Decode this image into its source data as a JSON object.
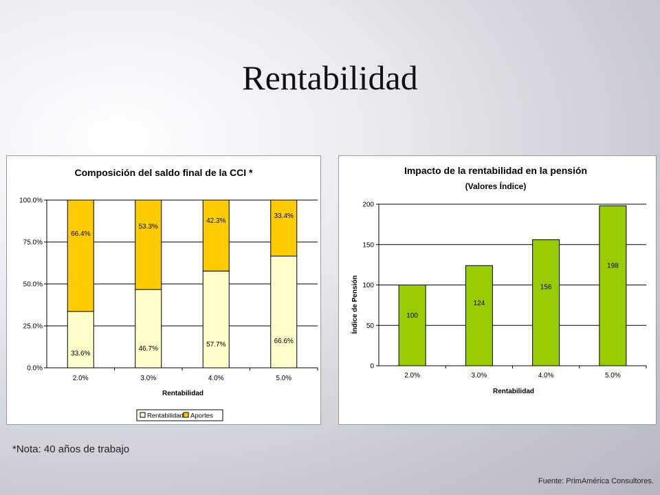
{
  "slide": {
    "title": "Rentabilidad",
    "note": "*Nota: 40 años de trabajo",
    "source": "Fuente: PrimAmérica Consultores."
  },
  "colors": {
    "rentabilidad_fill": "#ffffcc",
    "aportes_fill": "#ffcc00",
    "index_bar_fill": "#99cc00",
    "gridline": "#000000"
  },
  "chart_data": [
    {
      "type": "bar",
      "stacked": true,
      "title": "Composición del saldo final de la CCI *",
      "xlabel": "Rentabilidad",
      "ylabel": "",
      "categories": [
        "2.0%",
        "3.0%",
        "4.0%",
        "5.0%"
      ],
      "series": [
        {
          "name": "Rentabilidad",
          "values": [
            33.6,
            46.7,
            57.7,
            66.6
          ],
          "labels": [
            "33.6%",
            "46.7%",
            "57.7%",
            "66.6%"
          ],
          "color": "#ffffcc"
        },
        {
          "name": "Aportes",
          "values": [
            66.4,
            53.3,
            42.3,
            33.4
          ],
          "labels": [
            "66.4%",
            "53.3%",
            "42.3%",
            "33.4%"
          ],
          "color": "#ffcc00"
        }
      ],
      "ylim": [
        0,
        100
      ],
      "yticks": [
        0,
        25,
        50,
        75,
        100
      ],
      "ytick_labels": [
        "0.0%",
        "25.0%",
        "50.0%",
        "75.0%",
        "100.0%"
      ],
      "grid": true,
      "legend": "bottom"
    },
    {
      "type": "bar",
      "title": "Impacto de la rentabilidad en la pensión",
      "subtitle": "(Valores Índice)",
      "xlabel": "Rentabilidad",
      "ylabel": "Índice de Pensión",
      "categories": [
        "2.0%",
        "3.0%",
        "4.0%",
        "5.0%"
      ],
      "values": [
        100,
        124,
        156,
        198
      ],
      "labels": [
        "100",
        "124",
        "156",
        "198"
      ],
      "ylim": [
        0,
        200
      ],
      "yticks": [
        0,
        50,
        100,
        150,
        200
      ],
      "ytick_labels": [
        "0",
        "50",
        "100",
        "150",
        "200"
      ],
      "grid": true,
      "color": "#99cc00"
    }
  ]
}
